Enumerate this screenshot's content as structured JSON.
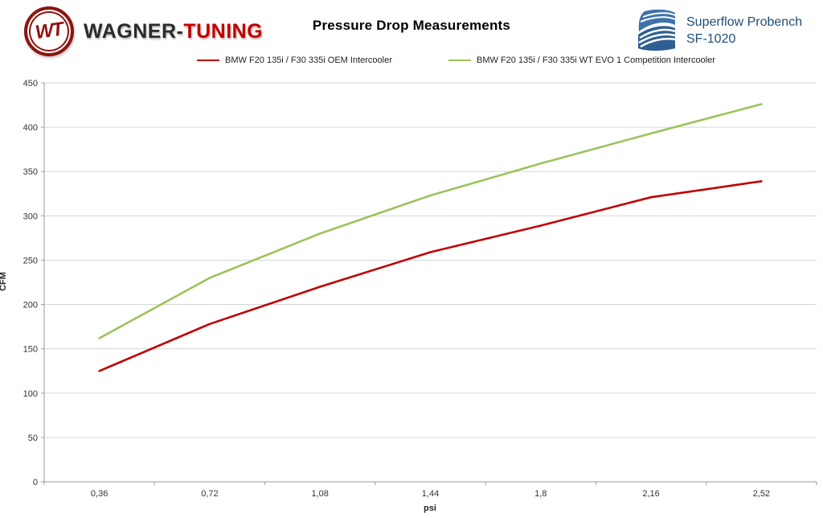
{
  "header": {
    "brand": {
      "monogram": "WT",
      "part1": "WAGNER-",
      "part2": "TUNING",
      "brand_red": "#c00000",
      "emblem_icon": "wagner-tuning-emblem"
    },
    "title": "Pressure Drop Measurements",
    "bench": {
      "line1": "Superflow Probench",
      "line2": "SF-1020",
      "logo_icon": "superflow-wave-logo",
      "blue": "#3f72a8",
      "text_color": "#1f4e79"
    }
  },
  "legend": [
    {
      "label": "BMW F20 135i / F30 335i OEM Intercooler",
      "color": "#c00000"
    },
    {
      "label": "BMW F20 135i / F30 335i WT EVO 1 Competition Intercooler",
      "color": "#9cc35b"
    }
  ],
  "chart_data": {
    "type": "line",
    "title": "Pressure Drop Measurements",
    "categories": [
      "0,36",
      "0,72",
      "1,08",
      "1,44",
      "1,8",
      "2,16",
      "2,52"
    ],
    "x_values": [
      0.36,
      0.72,
      1.08,
      1.44,
      1.8,
      2.16,
      2.52
    ],
    "series": [
      {
        "name": "BMW F20 135i / F30 335i OEM Intercooler",
        "color": "#c00000",
        "values": [
          125,
          178,
          220,
          259,
          289,
          321,
          339
        ]
      },
      {
        "name": "BMW F20 135i / F30 335i WT EVO 1 Competition Intercooler",
        "color": "#9cc35b",
        "values": [
          162,
          230,
          280,
          323,
          359,
          393,
          426
        ]
      }
    ],
    "xlabel": "psi",
    "ylabel": "CFM",
    "ylim": [
      0,
      450
    ],
    "ytick_step": 50,
    "grid": true,
    "legend_position": "top",
    "gridline_color": "#d6d6d6",
    "axis_color": "#9a9a9a",
    "tick_label_color": "#333333"
  }
}
